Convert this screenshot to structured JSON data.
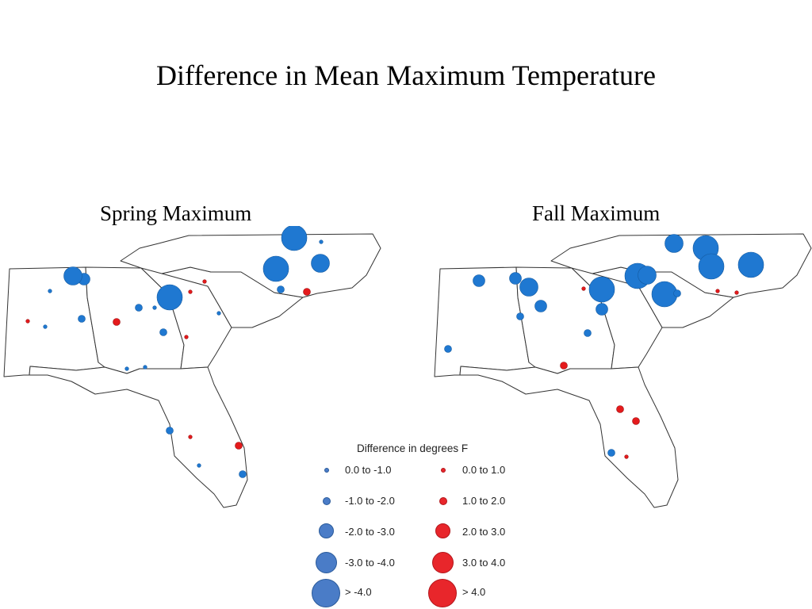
{
  "title": "Difference in Mean Maximum Temperature",
  "maps": [
    {
      "id": "spring",
      "title": "Spring Maximum"
    },
    {
      "id": "fall",
      "title": "Fall Maximum"
    }
  ],
  "legend": {
    "title": "Difference in degrees F",
    "negative": [
      "0.0 to -1.0",
      "-1.0 to -2.0",
      "-2.0 to -3.0",
      "-3.0 to -4.0",
      "> -4.0"
    ],
    "positive": [
      "0.0 to 1.0",
      "1.0 to 2.0",
      "2.0 to 3.0",
      "3.0 to 4.0",
      "> 4.0"
    ]
  },
  "colors": {
    "cooling": "#1f78d1",
    "warming": "#e41a1c",
    "outline": "#333333"
  },
  "stations": {
    "spring": [
      {
        "region": "Mississippi",
        "class": "neg3"
      },
      {
        "region": "Mississippi",
        "class": "neg1"
      },
      {
        "region": "Mississippi",
        "class": "neg2"
      },
      {
        "region": "Mississippi",
        "class": "neg1"
      },
      {
        "region": "Mississippi",
        "class": "pos1"
      },
      {
        "region": "Alabama",
        "class": "neg4"
      },
      {
        "region": "Alabama",
        "class": "pos2"
      },
      {
        "region": "Alabama",
        "class": "neg2"
      },
      {
        "region": "Alabama",
        "class": "neg1"
      },
      {
        "region": "Alabama",
        "class": "pos1"
      },
      {
        "region": "Georgia",
        "class": "neg5"
      },
      {
        "region": "Georgia",
        "class": "neg1"
      },
      {
        "region": "Georgia",
        "class": "pos1"
      },
      {
        "region": "Georgia",
        "class": "neg2"
      },
      {
        "region": "Georgia",
        "class": "neg1"
      },
      {
        "region": "South Carolina",
        "class": "pos1"
      },
      {
        "region": "South Carolina",
        "class": "neg1"
      },
      {
        "region": "South Carolina",
        "class": "pos2"
      },
      {
        "region": "North Carolina",
        "class": "neg5"
      },
      {
        "region": "North Carolina",
        "class": "neg5"
      },
      {
        "region": "North Carolina",
        "class": "neg4"
      },
      {
        "region": "North Carolina",
        "class": "neg2"
      },
      {
        "region": "North Carolina",
        "class": "neg1"
      },
      {
        "region": "Florida",
        "class": "neg2"
      },
      {
        "region": "Florida",
        "class": "pos1"
      },
      {
        "region": "Florida",
        "class": "neg1"
      },
      {
        "region": "Florida",
        "class": "pos2"
      },
      {
        "region": "Florida",
        "class": "neg2"
      }
    ],
    "fall": [
      {
        "region": "Mississippi",
        "class": "neg3"
      },
      {
        "region": "Mississippi",
        "class": "neg2"
      },
      {
        "region": "Mississippi",
        "class": "neg3"
      },
      {
        "region": "Mississippi",
        "class": "neg2"
      },
      {
        "region": "Alabama",
        "class": "neg5"
      },
      {
        "region": "Alabama",
        "class": "neg4"
      },
      {
        "region": "Alabama",
        "class": "neg3"
      },
      {
        "region": "Alabama",
        "class": "pos2"
      },
      {
        "region": "Georgia",
        "class": "neg5"
      },
      {
        "region": "Georgia",
        "class": "neg3"
      },
      {
        "region": "Georgia",
        "class": "pos1"
      },
      {
        "region": "Georgia",
        "class": "neg2"
      },
      {
        "region": "South Carolina",
        "class": "neg5"
      },
      {
        "region": "South Carolina",
        "class": "neg4"
      },
      {
        "region": "South Carolina",
        "class": "pos1"
      },
      {
        "region": "North Carolina",
        "class": "neg5"
      },
      {
        "region": "North Carolina",
        "class": "neg5"
      },
      {
        "region": "North Carolina",
        "class": "neg5"
      },
      {
        "region": "North Carolina",
        "class": "neg4"
      },
      {
        "region": "North Carolina",
        "class": "neg2"
      },
      {
        "region": "Florida",
        "class": "pos2"
      },
      {
        "region": "Florida",
        "class": "pos1"
      },
      {
        "region": "Florida",
        "class": "pos2"
      },
      {
        "region": "Florida",
        "class": "neg2"
      },
      {
        "region": "Florida",
        "class": "pos1"
      }
    ]
  }
}
